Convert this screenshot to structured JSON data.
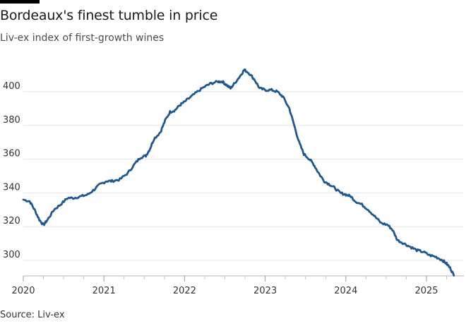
{
  "chart_data": {
    "type": "line",
    "title": "Bordeaux's finest tumble in price",
    "subtitle": "Liv-ex index of first-growth wines",
    "source": "Source: Liv-ex",
    "xlabel": "",
    "ylabel": "",
    "xlim": [
      2020.0,
      2025.4
    ],
    "ylim": [
      290,
      425
    ],
    "x_ticks": [
      {
        "value": 2020,
        "label": "2020"
      },
      {
        "value": 2021,
        "label": "2021"
      },
      {
        "value": 2022,
        "label": "2022"
      },
      {
        "value": 2023,
        "label": "2023"
      },
      {
        "value": 2024,
        "label": "2024"
      },
      {
        "value": 2025,
        "label": "2025"
      }
    ],
    "y_ticks": [
      {
        "value": 300,
        "label": "300"
      },
      {
        "value": 320,
        "label": "320"
      },
      {
        "value": 340,
        "label": "340"
      },
      {
        "value": 360,
        "label": "360"
      },
      {
        "value": 380,
        "label": "380"
      },
      {
        "value": 400,
        "label": "400"
      }
    ],
    "grid": true,
    "series": [
      {
        "color": "#1f5790",
        "points": [
          [
            2020.0,
            336
          ],
          [
            2020.08,
            335
          ],
          [
            2020.14,
            330
          ],
          [
            2020.2,
            324
          ],
          [
            2020.25,
            321
          ],
          [
            2020.3,
            324
          ],
          [
            2020.38,
            330
          ],
          [
            2020.46,
            333
          ],
          [
            2020.55,
            337
          ],
          [
            2020.63,
            337
          ],
          [
            2020.72,
            338
          ],
          [
            2020.8,
            339
          ],
          [
            2020.88,
            342
          ],
          [
            2020.95,
            345
          ],
          [
            2021.03,
            347
          ],
          [
            2021.1,
            347
          ],
          [
            2021.2,
            348
          ],
          [
            2021.3,
            352
          ],
          [
            2021.38,
            357
          ],
          [
            2021.45,
            361
          ],
          [
            2021.52,
            362
          ],
          [
            2021.57,
            366
          ],
          [
            2021.62,
            372
          ],
          [
            2021.7,
            376
          ],
          [
            2021.76,
            383
          ],
          [
            2021.82,
            388
          ],
          [
            2021.88,
            389
          ],
          [
            2021.94,
            392
          ],
          [
            2022.0,
            394
          ],
          [
            2022.08,
            397
          ],
          [
            2022.16,
            400
          ],
          [
            2022.25,
            403
          ],
          [
            2022.33,
            405
          ],
          [
            2022.42,
            406
          ],
          [
            2022.47,
            406
          ],
          [
            2022.52,
            404
          ],
          [
            2022.57,
            402
          ],
          [
            2022.62,
            405
          ],
          [
            2022.7,
            410
          ],
          [
            2022.74,
            413
          ],
          [
            2022.8,
            411
          ],
          [
            2022.87,
            407
          ],
          [
            2022.93,
            402
          ],
          [
            2023.0,
            401
          ],
          [
            2023.08,
            401
          ],
          [
            2023.15,
            400
          ],
          [
            2023.22,
            397
          ],
          [
            2023.3,
            390
          ],
          [
            2023.36,
            380
          ],
          [
            2023.42,
            370
          ],
          [
            2023.48,
            363
          ],
          [
            2023.55,
            360
          ],
          [
            2023.6,
            357
          ],
          [
            2023.66,
            352
          ],
          [
            2023.73,
            347
          ],
          [
            2023.8,
            345
          ],
          [
            2023.86,
            343
          ],
          [
            2023.93,
            340
          ],
          [
            2024.0,
            339
          ],
          [
            2024.06,
            338
          ],
          [
            2024.12,
            335
          ],
          [
            2024.2,
            333
          ],
          [
            2024.28,
            330
          ],
          [
            2024.36,
            326
          ],
          [
            2024.44,
            322
          ],
          [
            2024.52,
            321
          ],
          [
            2024.58,
            318
          ],
          [
            2024.64,
            312
          ],
          [
            2024.72,
            310
          ],
          [
            2024.8,
            308
          ],
          [
            2024.88,
            306
          ],
          [
            2024.96,
            305
          ],
          [
            2025.04,
            303
          ],
          [
            2025.12,
            302
          ],
          [
            2025.2,
            300
          ],
          [
            2025.25,
            298
          ],
          [
            2025.3,
            295
          ],
          [
            2025.34,
            291
          ]
        ]
      }
    ]
  }
}
